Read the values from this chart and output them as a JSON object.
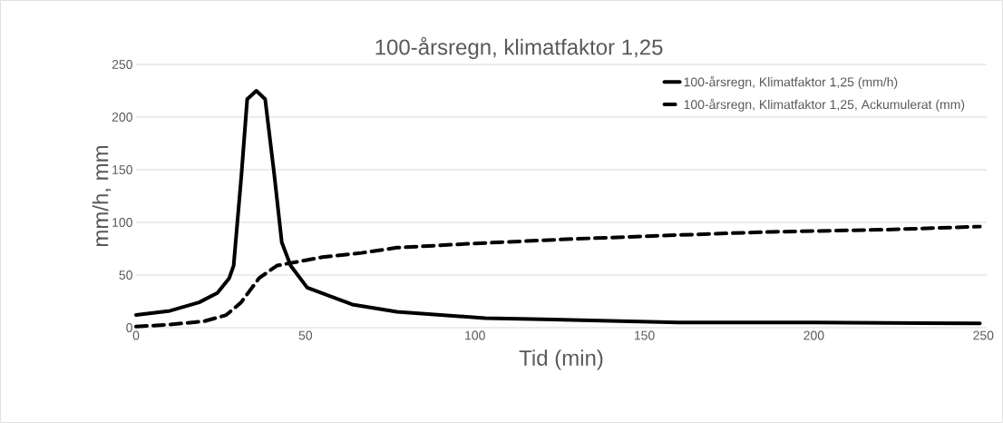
{
  "chart_data": {
    "type": "line",
    "title": "100-årsregn, klimatfaktor 1,25",
    "xlabel": "Tid (min)",
    "ylabel": "mm/h, mm",
    "xlim": [
      0,
      251
    ],
    "xticks": [
      0,
      50,
      100,
      150,
      200,
      250
    ],
    "ylim": [
      0,
      250
    ],
    "yticks": [
      0,
      50,
      100,
      150,
      200,
      250
    ],
    "grid": "y",
    "legend": "top right",
    "series": [
      {
        "name": "100-årsregn, Klimatfaktor 1,25 (mm/h)",
        "color": "#000000",
        "line_style": "solid",
        "x": [
          0,
          5,
          10,
          18.6,
          24,
          27.5,
          28.8,
          31.1,
          32.8,
          35.5,
          38.1,
          40.8,
          43,
          45.6,
          50.5,
          63.8,
          77,
          103,
          120,
          160,
          200,
          249
        ],
        "values": [
          12,
          14,
          16,
          24,
          33,
          47,
          59,
          145,
          217,
          225,
          217,
          145,
          81,
          59,
          38,
          22,
          15,
          9,
          8,
          5,
          5,
          4
        ]
      },
      {
        "name": "100-årsregn, Klimatfaktor 1,25, Ackumulerat (mm)",
        "color": "#000000",
        "line_style": "dashed",
        "x": [
          0,
          10,
          20,
          26.6,
          31,
          36.3,
          41.6,
          55,
          66.5,
          77,
          100,
          127,
          160,
          187.5,
          220,
          249
        ],
        "values": [
          1,
          3,
          6,
          12,
          24,
          47,
          59,
          67,
          71,
          76,
          80,
          84,
          88,
          91,
          93,
          96
        ]
      }
    ]
  }
}
